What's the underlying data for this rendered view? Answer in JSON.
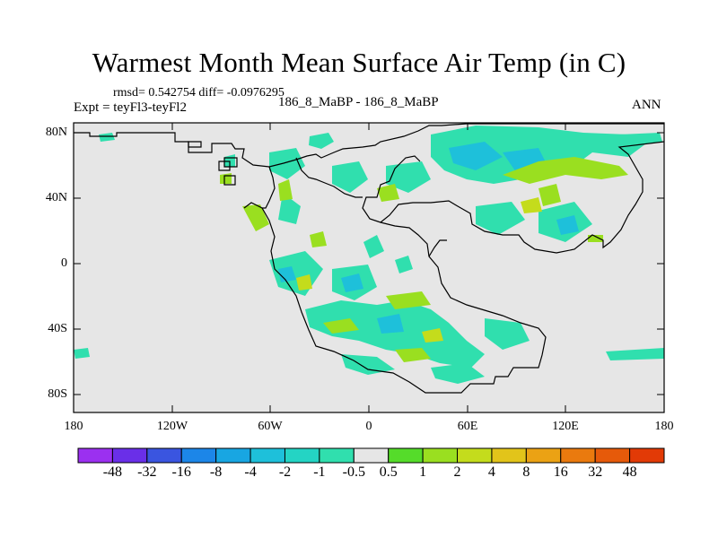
{
  "title": "Warmest Month Mean Surface Air Temp (in C)",
  "stats": "rmsd= 0.542754 diff= -0.0976295",
  "experiment": "Expt = teyFl3-teyFl2",
  "comparison": "186_8_MaBP - 186_8_MaBP",
  "season": "ANN",
  "lat_ticks": [
    "80N",
    "40N",
    "0",
    "40S",
    "80S"
  ],
  "lon_ticks": [
    "180",
    "120W",
    "60W",
    "0",
    "60E",
    "120E",
    "180"
  ],
  "colorbar": {
    "labels": [
      "-48",
      "-32",
      "-16",
      "-8",
      "-4",
      "-2",
      "-1",
      "-0.5",
      "0.5",
      "1",
      "2",
      "4",
      "8",
      "16",
      "32",
      "48"
    ],
    "colors": [
      "#9b30f0",
      "#6a2fe8",
      "#3a55e0",
      "#1c86e8",
      "#18a6e2",
      "#1ec0da",
      "#24d4c4",
      "#30dfae",
      "#e6e6e6",
      "#55dc2a",
      "#9adf20",
      "#c4dc1c",
      "#e2c41a",
      "#eba214",
      "#ea7a0e",
      "#e65a0a",
      "#e23a06"
    ]
  },
  "colors": {
    "ocean": "#e6e6e6",
    "coast": "#000000",
    "frame": "#000000"
  }
}
